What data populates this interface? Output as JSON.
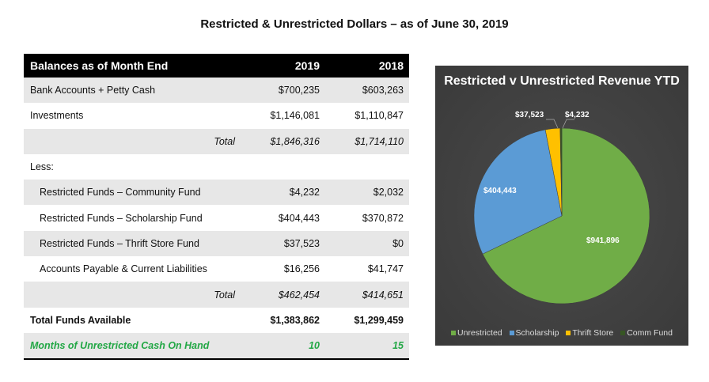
{
  "title": "Restricted & Unrestricted Dollars – as of June 30, 2019",
  "table": {
    "header": {
      "label": "Balances as of Month End",
      "c2019": "2019",
      "c2018": "2018"
    },
    "rows": [
      {
        "label": "Bank Accounts + Petty Cash",
        "c2019": "$700,235",
        "c2018": "$603,263"
      },
      {
        "label": "Investments",
        "c2019": "$1,146,081",
        "c2018": "$1,110,847"
      },
      {
        "total": "Total",
        "c2019": "$1,846,316",
        "c2018": "$1,714,110"
      },
      {
        "label": "Less:"
      },
      {
        "label": "Restricted Funds – Community Fund",
        "c2019": "$4,232",
        "c2018": "$2,032"
      },
      {
        "label": "Restricted Funds – Scholarship Fund",
        "c2019": "$404,443",
        "c2018": "$370,872"
      },
      {
        "label": "Restricted Funds – Thrift Store Fund",
        "c2019": "$37,523",
        "c2018": "$0"
      },
      {
        "label": "Accounts Payable & Current Liabilities",
        "c2019": "$16,256",
        "c2018": "$41,747"
      },
      {
        "total": "Total",
        "c2019": "$462,454",
        "c2018": "$414,651"
      },
      {
        "label": "Total Funds Available",
        "c2019": "$1,383,862",
        "c2018": "$1,299,459"
      },
      {
        "label": "Months of Unrestricted Cash On Hand",
        "c2019": "10",
        "c2018": "15"
      }
    ]
  },
  "chart_data": {
    "type": "pie",
    "title": "Restricted v Unrestricted Revenue YTD",
    "categories": [
      "Unrestricted",
      "Scholarship",
      "Thrift Store",
      "Comm Fund"
    ],
    "values": [
      941896,
      404443,
      37523,
      4232
    ],
    "data_labels": [
      "$941,896",
      "$404,443",
      "$37,523",
      "$4,232"
    ],
    "colors": [
      "#70ad47",
      "#5b9bd5",
      "#ffc000",
      "#375623"
    ],
    "legend_position": "bottom",
    "start": "12 o'clock, clockwise"
  }
}
